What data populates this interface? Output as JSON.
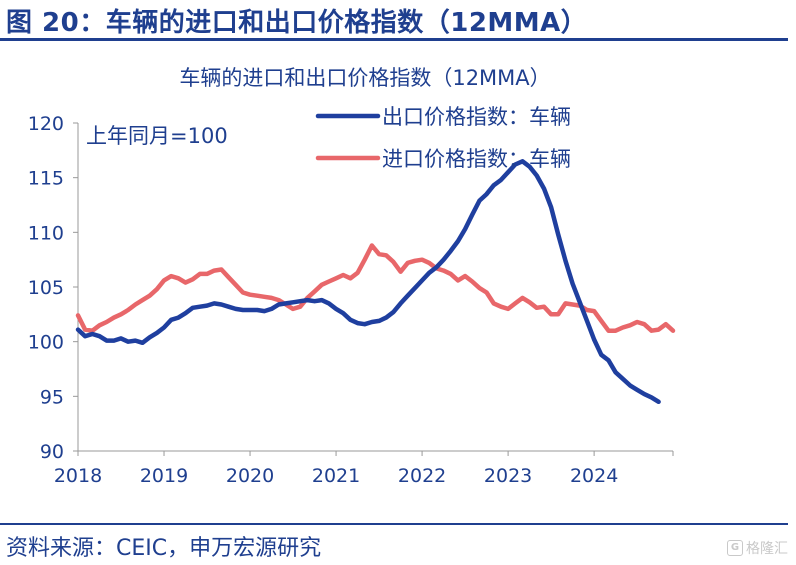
{
  "figure": {
    "title": "图 20：车辆的进口和出口价格指数（12MMA）",
    "source": "资料来源：CEIC，申万宏源研究"
  },
  "watermark": {
    "icon": "G",
    "text": "格隆汇"
  },
  "chart_data": {
    "type": "line",
    "title": "车辆的进口和出口价格指数（12MMA）",
    "annotation": "上年同月=100",
    "xlabel": "",
    "ylabel": "",
    "xlim": [
      2018,
      2025
    ],
    "ylim": [
      90,
      120
    ],
    "yticks": [
      90,
      95,
      100,
      105,
      110,
      115,
      120
    ],
    "xticks": [
      "2018",
      "2019",
      "2020",
      "2021",
      "2022",
      "2023",
      "2024"
    ],
    "legend_position": "top-right",
    "grid": false,
    "series": [
      {
        "name": "出口价格指数：车辆",
        "color": "#1f3f9f",
        "points": [
          [
            2018.0,
            101.1
          ],
          [
            2018.083,
            100.5
          ],
          [
            2018.167,
            100.7
          ],
          [
            2018.25,
            100.5
          ],
          [
            2018.333,
            100.1
          ],
          [
            2018.417,
            100.1
          ],
          [
            2018.5,
            100.3
          ],
          [
            2018.583,
            100.0
          ],
          [
            2018.667,
            100.1
          ],
          [
            2018.75,
            99.9
          ],
          [
            2018.833,
            100.4
          ],
          [
            2018.917,
            100.8
          ],
          [
            2019.0,
            101.3
          ],
          [
            2019.083,
            102.0
          ],
          [
            2019.167,
            102.2
          ],
          [
            2019.25,
            102.6
          ],
          [
            2019.333,
            103.1
          ],
          [
            2019.417,
            103.2
          ],
          [
            2019.5,
            103.3
          ],
          [
            2019.583,
            103.5
          ],
          [
            2019.667,
            103.4
          ],
          [
            2019.75,
            103.2
          ],
          [
            2019.833,
            103.0
          ],
          [
            2019.917,
            102.9
          ],
          [
            2020.0,
            102.9
          ],
          [
            2020.083,
            102.9
          ],
          [
            2020.167,
            102.8
          ],
          [
            2020.25,
            103.0
          ],
          [
            2020.333,
            103.4
          ],
          [
            2020.417,
            103.5
          ],
          [
            2020.5,
            103.6
          ],
          [
            2020.583,
            103.7
          ],
          [
            2020.667,
            103.8
          ],
          [
            2020.75,
            103.7
          ],
          [
            2020.833,
            103.8
          ],
          [
            2020.917,
            103.5
          ],
          [
            2021.0,
            103.0
          ],
          [
            2021.083,
            102.6
          ],
          [
            2021.167,
            102.0
          ],
          [
            2021.25,
            101.7
          ],
          [
            2021.333,
            101.6
          ],
          [
            2021.417,
            101.8
          ],
          [
            2021.5,
            101.9
          ],
          [
            2021.583,
            102.2
          ],
          [
            2021.667,
            102.7
          ],
          [
            2021.75,
            103.5
          ],
          [
            2021.833,
            104.2
          ],
          [
            2021.917,
            104.9
          ],
          [
            2022.0,
            105.6
          ],
          [
            2022.083,
            106.3
          ],
          [
            2022.167,
            106.8
          ],
          [
            2022.25,
            107.5
          ],
          [
            2022.333,
            108.3
          ],
          [
            2022.417,
            109.2
          ],
          [
            2022.5,
            110.3
          ],
          [
            2022.583,
            111.6
          ],
          [
            2022.667,
            112.9
          ],
          [
            2022.75,
            113.5
          ],
          [
            2022.833,
            114.3
          ],
          [
            2022.917,
            114.8
          ],
          [
            2023.0,
            115.5
          ],
          [
            2023.083,
            116.2
          ],
          [
            2023.167,
            116.5
          ],
          [
            2023.25,
            116.0
          ],
          [
            2023.333,
            115.2
          ],
          [
            2023.417,
            114.0
          ],
          [
            2023.5,
            112.3
          ],
          [
            2023.583,
            109.8
          ],
          [
            2023.667,
            107.4
          ],
          [
            2023.75,
            105.3
          ],
          [
            2023.833,
            103.6
          ],
          [
            2023.917,
            101.9
          ],
          [
            2024.0,
            100.2
          ],
          [
            2024.083,
            98.8
          ],
          [
            2024.167,
            98.3
          ],
          [
            2024.25,
            97.2
          ],
          [
            2024.333,
            96.6
          ],
          [
            2024.417,
            96.0
          ],
          [
            2024.5,
            95.6
          ],
          [
            2024.583,
            95.2
          ],
          [
            2024.667,
            94.9
          ],
          [
            2024.75,
            94.5
          ]
        ]
      },
      {
        "name": "进口价格指数：车辆",
        "color": "#e8676a",
        "points": [
          [
            2018.0,
            102.4
          ],
          [
            2018.083,
            101.1
          ],
          [
            2018.167,
            101.0
          ],
          [
            2018.25,
            101.5
          ],
          [
            2018.333,
            101.8
          ],
          [
            2018.417,
            102.2
          ],
          [
            2018.5,
            102.5
          ],
          [
            2018.583,
            102.9
          ],
          [
            2018.667,
            103.4
          ],
          [
            2018.75,
            103.8
          ],
          [
            2018.833,
            104.2
          ],
          [
            2018.917,
            104.8
          ],
          [
            2019.0,
            105.6
          ],
          [
            2019.083,
            106.0
          ],
          [
            2019.167,
            105.8
          ],
          [
            2019.25,
            105.4
          ],
          [
            2019.333,
            105.7
          ],
          [
            2019.417,
            106.2
          ],
          [
            2019.5,
            106.2
          ],
          [
            2019.583,
            106.5
          ],
          [
            2019.667,
            106.6
          ],
          [
            2019.75,
            105.9
          ],
          [
            2019.833,
            105.2
          ],
          [
            2019.917,
            104.5
          ],
          [
            2020.0,
            104.3
          ],
          [
            2020.083,
            104.2
          ],
          [
            2020.167,
            104.1
          ],
          [
            2020.25,
            104.0
          ],
          [
            2020.333,
            103.8
          ],
          [
            2020.417,
            103.4
          ],
          [
            2020.5,
            103.0
          ],
          [
            2020.583,
            103.2
          ],
          [
            2020.667,
            104.0
          ],
          [
            2020.75,
            104.6
          ],
          [
            2020.833,
            105.2
          ],
          [
            2020.917,
            105.5
          ],
          [
            2021.0,
            105.8
          ],
          [
            2021.083,
            106.1
          ],
          [
            2021.167,
            105.8
          ],
          [
            2021.25,
            106.3
          ],
          [
            2021.333,
            107.5
          ],
          [
            2021.417,
            108.8
          ],
          [
            2021.5,
            108.0
          ],
          [
            2021.583,
            107.9
          ],
          [
            2021.667,
            107.3
          ],
          [
            2021.75,
            106.4
          ],
          [
            2021.833,
            107.2
          ],
          [
            2021.917,
            107.4
          ],
          [
            2022.0,
            107.5
          ],
          [
            2022.083,
            107.2
          ],
          [
            2022.167,
            106.7
          ],
          [
            2022.25,
            106.5
          ],
          [
            2022.333,
            106.2
          ],
          [
            2022.417,
            105.6
          ],
          [
            2022.5,
            106.0
          ],
          [
            2022.583,
            105.5
          ],
          [
            2022.667,
            104.9
          ],
          [
            2022.75,
            104.5
          ],
          [
            2022.833,
            103.5
          ],
          [
            2022.917,
            103.2
          ],
          [
            2023.0,
            103.0
          ],
          [
            2023.083,
            103.5
          ],
          [
            2023.167,
            104.0
          ],
          [
            2023.25,
            103.6
          ],
          [
            2023.333,
            103.1
          ],
          [
            2023.417,
            103.2
          ],
          [
            2023.5,
            102.5
          ],
          [
            2023.583,
            102.5
          ],
          [
            2023.667,
            103.5
          ],
          [
            2023.75,
            103.4
          ],
          [
            2023.833,
            103.3
          ],
          [
            2023.917,
            102.9
          ],
          [
            2024.0,
            102.8
          ],
          [
            2024.083,
            101.9
          ],
          [
            2024.167,
            101.0
          ],
          [
            2024.25,
            101.0
          ],
          [
            2024.333,
            101.3
          ],
          [
            2024.417,
            101.5
          ],
          [
            2024.5,
            101.8
          ],
          [
            2024.583,
            101.6
          ],
          [
            2024.667,
            101.0
          ],
          [
            2024.75,
            101.1
          ],
          [
            2024.833,
            101.6
          ],
          [
            2024.917,
            101.0
          ]
        ]
      }
    ]
  }
}
